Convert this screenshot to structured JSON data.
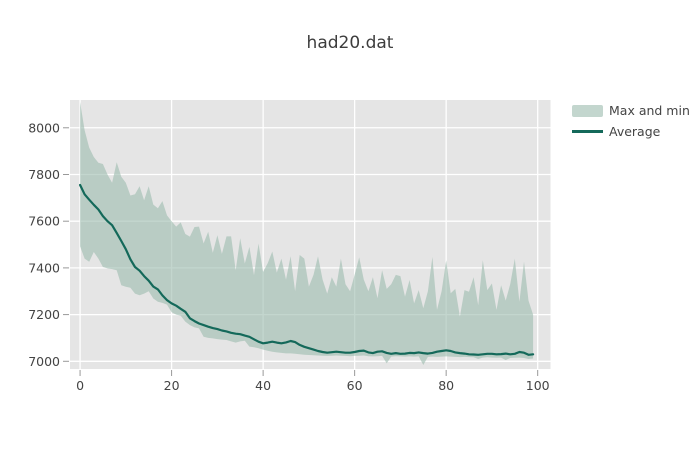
{
  "chart_data": {
    "type": "area",
    "title": "had20.dat",
    "xlabel": "",
    "ylabel": "",
    "xlim": [
      -2.2,
      102.8
    ],
    "ylim": [
      6967,
      8119
    ],
    "x_ticks": [
      0,
      20,
      40,
      60,
      80,
      100
    ],
    "y_ticks": [
      7000,
      7200,
      7400,
      7600,
      7800,
      8000
    ],
    "grid": true,
    "legend_position": "top-right",
    "plot_bg": "#E5E5E5",
    "grid_color": "#FFFFFF",
    "tick_color": "#999999",
    "label_color": "#444444",
    "x": [
      0,
      1,
      2,
      3,
      4,
      5,
      6,
      7,
      8,
      9,
      10,
      11,
      12,
      13,
      14,
      15,
      16,
      17,
      18,
      19,
      20,
      21,
      22,
      23,
      24,
      25,
      26,
      27,
      28,
      29,
      30,
      31,
      32,
      33,
      34,
      35,
      36,
      37,
      38,
      39,
      40,
      41,
      42,
      43,
      44,
      45,
      46,
      47,
      48,
      49,
      50,
      51,
      52,
      53,
      54,
      55,
      56,
      57,
      58,
      59,
      60,
      61,
      62,
      63,
      64,
      65,
      66,
      67,
      68,
      69,
      70,
      71,
      72,
      73,
      74,
      75,
      76,
      77,
      78,
      79,
      80,
      81,
      82,
      83,
      84,
      85,
      86,
      87,
      88,
      89,
      90,
      91,
      92,
      93,
      94,
      95,
      96,
      97,
      98,
      99
    ],
    "series": [
      {
        "name": "Max and min",
        "type": "band",
        "fill": "rgba(158,189,176,0.62)",
        "max": [
          8110,
          7990,
          7915,
          7875,
          7850,
          7845,
          7800,
          7765,
          7852,
          7790,
          7765,
          7710,
          7715,
          7750,
          7690,
          7750,
          7671,
          7655,
          7686,
          7625,
          7600,
          7577,
          7595,
          7545,
          7534,
          7575,
          7577,
          7505,
          7555,
          7465,
          7540,
          7460,
          7535,
          7535,
          7390,
          7527,
          7419,
          7490,
          7369,
          7504,
          7383,
          7420,
          7470,
          7380,
          7440,
          7350,
          7450,
          7300,
          7455,
          7440,
          7320,
          7370,
          7450,
          7350,
          7290,
          7360,
          7320,
          7440,
          7330,
          7300,
          7370,
          7445,
          7350,
          7300,
          7360,
          7270,
          7390,
          7310,
          7330,
          7370,
          7365,
          7277,
          7348,
          7248,
          7305,
          7227,
          7300,
          7447,
          7221,
          7300,
          7433,
          7291,
          7310,
          7192,
          7305,
          7298,
          7360,
          7240,
          7433,
          7305,
          7333,
          7220,
          7326,
          7260,
          7330,
          7440,
          7255,
          7426,
          7260,
          7200
        ],
        "min": [
          7492,
          7440,
          7426,
          7468,
          7440,
          7404,
          7398,
          7395,
          7390,
          7326,
          7319,
          7315,
          7290,
          7283,
          7290,
          7300,
          7269,
          7255,
          7250,
          7243,
          7210,
          7200,
          7195,
          7170,
          7155,
          7145,
          7141,
          7105,
          7100,
          7098,
          7095,
          7093,
          7091,
          7085,
          7080,
          7085,
          7088,
          7063,
          7060,
          7056,
          7050,
          7045,
          7041,
          7038,
          7036,
          7034,
          7034,
          7032,
          7030,
          7028,
          7027,
          7026,
          7025,
          7024,
          7023,
          7024,
          7025,
          7024,
          7023,
          7022,
          7023,
          7024,
          7025,
          7022,
          7021,
          7022,
          7023,
          6991,
          7020,
          7022,
          7021,
          7020,
          7021,
          7020,
          7021,
          6984,
          7019,
          7020,
          7019,
          7020,
          7021,
          7020,
          7019,
          7018,
          7019,
          7018,
          7017,
          7010,
          7016,
          7017,
          7016,
          7015,
          7016,
          7005,
          7014,
          7015,
          7016,
          7014,
          7010,
          7012
        ]
      },
      {
        "name": "Average",
        "type": "line",
        "color": "#14695A",
        "values": [
          7755,
          7715,
          7692,
          7670,
          7650,
          7622,
          7600,
          7583,
          7550,
          7515,
          7480,
          7437,
          7404,
          7388,
          7365,
          7345,
          7320,
          7308,
          7282,
          7262,
          7248,
          7238,
          7225,
          7212,
          7184,
          7172,
          7162,
          7155,
          7148,
          7142,
          7138,
          7132,
          7128,
          7122,
          7118,
          7116,
          7110,
          7105,
          7094,
          7084,
          7077,
          7080,
          7084,
          7080,
          7077,
          7081,
          7087,
          7082,
          7070,
          7062,
          7056,
          7050,
          7044,
          7040,
          7037,
          7039,
          7041,
          7039,
          7037,
          7037,
          7040,
          7044,
          7046,
          7038,
          7035,
          7041,
          7043,
          7036,
          7032,
          7035,
          7032,
          7033,
          7036,
          7035,
          7038,
          7035,
          7033,
          7036,
          7041,
          7044,
          7047,
          7044,
          7038,
          7035,
          7033,
          7030,
          7029,
          7028,
          7030,
          7032,
          7032,
          7030,
          7031,
          7033,
          7030,
          7032,
          7040,
          7037,
          7028,
          7030
        ]
      }
    ]
  }
}
